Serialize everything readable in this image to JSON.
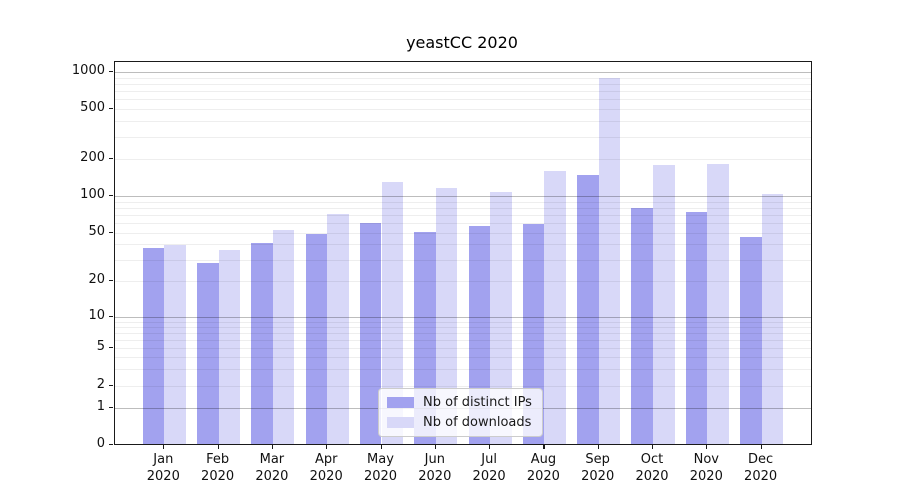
{
  "chart_data": {
    "type": "bar",
    "title": "yeastCC 2020",
    "categories": [
      "Jan 2020",
      "Feb 2020",
      "Mar 2020",
      "Apr 2020",
      "May 2020",
      "Jun 2020",
      "Jul 2020",
      "Aug 2020",
      "Sep 2020",
      "Oct 2020",
      "Nov 2020",
      "Dec 2020"
    ],
    "series": [
      {
        "name": "Nb of distinct IPs",
        "color": "#a2a2ef",
        "values": [
          37,
          28,
          41,
          48,
          59,
          50,
          56,
          58,
          146,
          79,
          73,
          46
        ]
      },
      {
        "name": "Nb of downloads",
        "color": "#d8d8f8",
        "values": [
          39,
          36,
          52,
          70,
          130,
          116,
          106,
          160,
          890,
          178,
          181,
          102
        ]
      }
    ],
    "xlabel": "",
    "ylabel": "",
    "y_ticks": [
      0,
      1,
      2,
      5,
      10,
      20,
      50,
      100,
      200,
      500,
      1000
    ],
    "ylim": [
      0,
      1000
    ],
    "y_scale": "log-like with compressed region below 10 and zero baseline",
    "grid": "horizontal major and minor gridlines drawn over bars",
    "legend_position": "inside plot, lower center-left",
    "bar_layout": "two bars per month, touching, centered on month tick"
  }
}
